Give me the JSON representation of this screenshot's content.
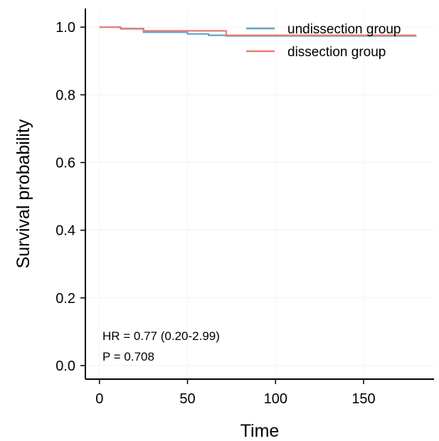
{
  "chart_data": {
    "type": "line",
    "title": "",
    "xlabel": "Time",
    "ylabel": "Survival probability",
    "xlim": [
      -8,
      190
    ],
    "ylim": [
      -0.04,
      1.055
    ],
    "x_ticks": [
      0,
      50,
      100,
      150
    ],
    "x_tick_labels": [
      "0",
      "50",
      "100",
      "150"
    ],
    "y_ticks": [
      0.0,
      0.2,
      0.4,
      0.6,
      0.8,
      1.0
    ],
    "y_tick_labels": [
      "0.0",
      "0.2",
      "0.4",
      "0.6",
      "0.8",
      "1.0"
    ],
    "step": true,
    "grid": true,
    "legend_position": "top-right",
    "series": [
      {
        "name": "undissection group",
        "color": "#5ba3d0",
        "x": [
          0,
          12,
          25,
          50,
          62,
          72,
          180
        ],
        "y": [
          1.0,
          0.995,
          0.985,
          0.98,
          0.976,
          0.974,
          0.974
        ]
      },
      {
        "name": "dissection group",
        "color": "#ee7b72",
        "x": [
          0,
          12,
          25,
          72,
          180
        ],
        "y": [
          1.0,
          0.996,
          0.989,
          0.976,
          0.976
        ]
      }
    ],
    "annotations": [
      "HR = 0.77 (0.20-2.99)",
      "P = 0.708"
    ]
  }
}
